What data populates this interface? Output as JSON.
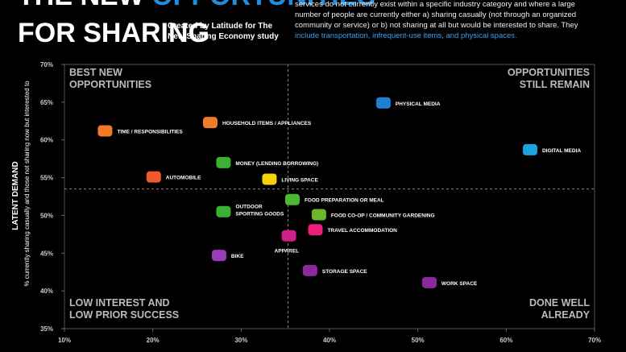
{
  "chart_data": {
    "type": "scatter",
    "title": [
      "THE NEW",
      "OPPORTUNITIES",
      "FOR SHARING"
    ],
    "subtitle": [
      "Created by Latitude for The",
      "New Sharing Economy study"
    ],
    "description": [
      "services do not currently exist within a specific industry category and where a large",
      "number of people are currently either a) sharing casually (not through an organized",
      "community or service) or b) not sharing at all but would be interested to share. They",
      "include transportation, infrequent-use items, and physical spaces."
    ],
    "y_label": "LATENT DEMAND",
    "y_sublabel": "% currently sharing casually and those not sharing now but interested to",
    "quadrants": {
      "top_left": [
        "BEST NEW",
        "OPPORTUNITIES"
      ],
      "top_right": [
        "OPPORTUNITIES",
        "STILL REMAIN"
      ],
      "bottom_left": [
        "LOW INTEREST AND",
        "LOW PRIOR SUCCESS"
      ],
      "bottom_right": [
        "DONE WELL",
        "ALREADY"
      ]
    },
    "categories": [
      "PHYSICAL MEDIA",
      "DIGITAL MEDIA",
      "TIME / RESPONSIBILITIES",
      "HOUSEHOLD ITEMS / APPLIANCES",
      "MONEY (LENDING BORROWING)",
      "AUTOMOBILE",
      "LIVING SPACE",
      "FOOD PREPARATION OR MEAL",
      [
        "OUTDOOR",
        "SPORTING GOODS"
      ],
      "FOOD CO-OP / COMMUNITY GARDENING",
      "TRAVEL ACCOMMODATION",
      "APPAREL",
      "BIKE",
      "STORAGE SPACE",
      "WORK SPACE"
    ],
    "x": [
      46.1,
      62.7,
      14.6,
      26.5,
      28,
      20.1,
      33.2,
      35.8,
      28,
      38.8,
      38.4,
      35.4,
      27.5,
      37.8,
      51.3
    ],
    "values": [
      64.9,
      58.7,
      61.2,
      62.3,
      57,
      55.1,
      54.8,
      52.1,
      50.5,
      50.1,
      48.1,
      47.3,
      44.7,
      42.7,
      41.1
    ],
    "colors": [
      "#1f7fd0",
      "#1ca3e0",
      "#f07a28",
      "#f07a28",
      "#3cb034",
      "#f05a28",
      "#f5d20a",
      "#4cb834",
      "#3cb034",
      "#6cb82c",
      "#e8207a",
      "#d01e8a",
      "#9a3cb8",
      "#8a2a9a",
      "#8a2a9a"
    ],
    "xlim": [
      10,
      70
    ],
    "ylim": [
      35,
      70
    ],
    "xticks": [
      {
        "value": 10,
        "label": "10%"
      },
      {
        "value": 20,
        "label": "20%"
      },
      {
        "value": 30,
        "label": "30%"
      },
      {
        "value": 40,
        "label": "40%"
      },
      {
        "value": 50,
        "label": "50%"
      },
      {
        "value": 60,
        "label": "60%"
      },
      {
        "value": 70,
        "label": "70%"
      }
    ],
    "yticks": [
      {
        "value": 35,
        "label": "35%"
      },
      {
        "value": 40,
        "label": "40%"
      },
      {
        "value": 45,
        "label": "45%"
      },
      {
        "value": 50,
        "label": "50%"
      },
      {
        "value": 55,
        "label": "55%"
      },
      {
        "value": 60,
        "label": "60%"
      },
      {
        "value": 65,
        "label": "65%"
      },
      {
        "value": 70,
        "label": "70%"
      }
    ],
    "x_divider": 35.3,
    "y_divider": 53.5
  }
}
